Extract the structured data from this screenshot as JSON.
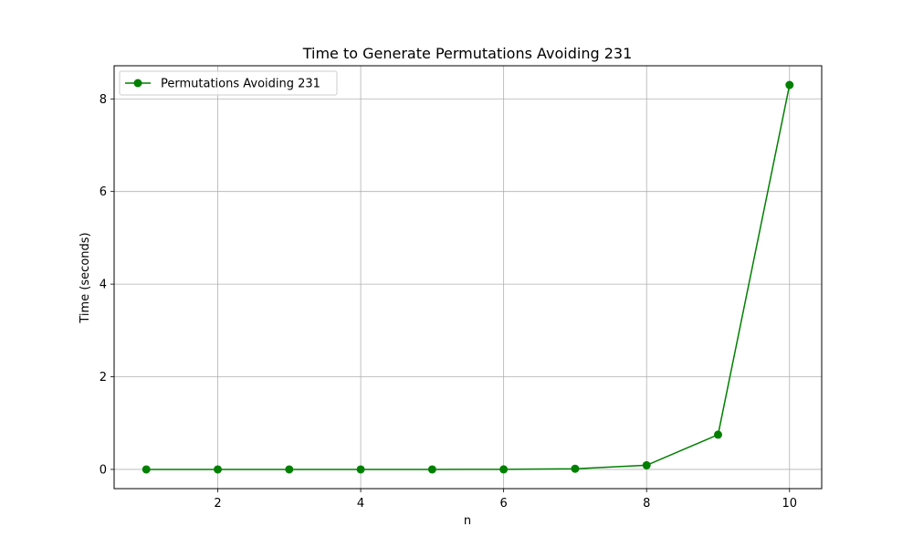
{
  "chart_data": {
    "type": "line",
    "title": "Time to Generate Permutations Avoiding 231",
    "xlabel": "n",
    "ylabel": "Time (seconds)",
    "x": [
      1,
      2,
      3,
      4,
      5,
      6,
      7,
      8,
      9,
      10
    ],
    "series": [
      {
        "name": "Permutations Avoiding 231",
        "values": [
          0.0,
          0.0,
          0.0,
          0.0,
          0.0,
          0.001,
          0.015,
          0.09,
          0.75,
          8.3
        ],
        "color": "#008000",
        "marker": "circle"
      }
    ],
    "xlim": [
      0.55,
      10.45
    ],
    "ylim": [
      -0.415,
      8.715
    ],
    "xticks": [
      2,
      4,
      6,
      8,
      10
    ],
    "yticks": [
      0,
      2,
      4,
      6,
      8
    ],
    "grid": true,
    "legend_position": "top-left"
  }
}
